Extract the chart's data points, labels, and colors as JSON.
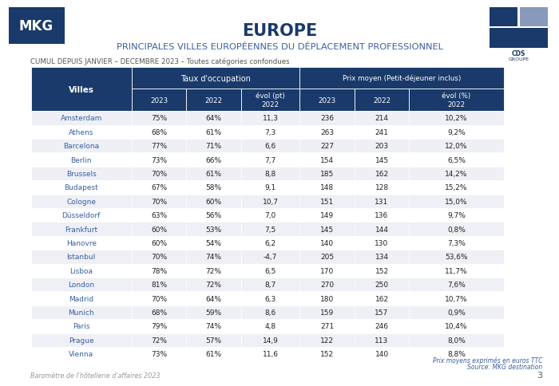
{
  "title": "EUROPE",
  "subtitle": "PRINCIPALES VILLES EUROPÉENNES DU DÉPLACEMENT PROFESSIONNEL",
  "cumul_label": "CUMUL DEPUIS JANVIER – DECEMBRE 2023 – Toutes catégories confondues",
  "cities": [
    "Amsterdam",
    "Athens",
    "Barcelona",
    "Berlin",
    "Brussels",
    "Budapest",
    "Cologne",
    "Düsseldorf",
    "Frankfurt",
    "Hanovre",
    "Istanbul",
    "Lisboa",
    "London",
    "Madrid",
    "Munich",
    "Paris",
    "Prague",
    "Vienna"
  ],
  "occ_2023": [
    "75%",
    "68%",
    "77%",
    "73%",
    "70%",
    "67%",
    "70%",
    "63%",
    "60%",
    "60%",
    "70%",
    "78%",
    "81%",
    "70%",
    "68%",
    "79%",
    "72%",
    "73%"
  ],
  "occ_2022": [
    "64%",
    "61%",
    "71%",
    "66%",
    "61%",
    "58%",
    "60%",
    "56%",
    "53%",
    "54%",
    "74%",
    "72%",
    "72%",
    "64%",
    "59%",
    "74%",
    "57%",
    "61%"
  ],
  "occ_evol": [
    "11,3",
    "7,3",
    "6,6",
    "7,7",
    "8,8",
    "9,1",
    "10,7",
    "7,0",
    "7,5",
    "6,2",
    "-4,7",
    "6,5",
    "8,7",
    "6,3",
    "8,6",
    "4,8",
    "14,9",
    "11,6"
  ],
  "prix_2023": [
    "236",
    "263",
    "227",
    "154",
    "185",
    "148",
    "151",
    "149",
    "145",
    "140",
    "205",
    "170",
    "270",
    "180",
    "159",
    "271",
    "122",
    "152"
  ],
  "prix_2022": [
    "214",
    "241",
    "203",
    "145",
    "162",
    "128",
    "131",
    "136",
    "144",
    "130",
    "134",
    "152",
    "250",
    "162",
    "157",
    "246",
    "113",
    "140"
  ],
  "prix_evol": [
    "10,2%",
    "9,2%",
    "12,0%",
    "6,5%",
    "14,2%",
    "15,2%",
    "15,0%",
    "9,7%",
    "0,8%",
    "7,3%",
    "53,6%",
    "11,7%",
    "7,6%",
    "10,7%",
    "0,9%",
    "10,4%",
    "8,0%",
    "8,8%"
  ],
  "header_bg": "#1a3a6b",
  "header_text": "#ffffff",
  "row_bg_even": "#eef0f5",
  "row_bg_odd": "#ffffff",
  "city_text_color": "#3a5fa0",
  "data_text_color": "#222222",
  "footnote1": "Prix moyens exprimés en euros TTC",
  "footnote2": "Source: MKG destination",
  "footer_text": "Baromètre de l'hôtellerie d'affaires 2023",
  "page_num": "3",
  "title_color": "#1a3a6b",
  "subtitle_color": "#3a5fa0",
  "cumul_color": "#555555",
  "mkg_bg": "#1a3a6b",
  "mkg_text": "#ffffff",
  "cds_bg": "#1a3a6b",
  "cds_light": "#8899bb"
}
